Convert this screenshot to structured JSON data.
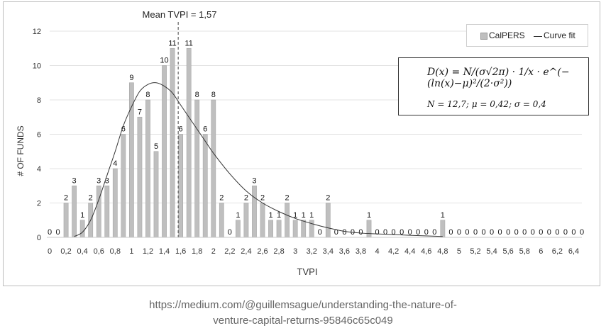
{
  "chart_data": {
    "type": "bar",
    "xlabel": "TVPI",
    "ylabel": "# OF FUNDS",
    "ylim": [
      0,
      12
    ],
    "yticks": [
      0,
      2,
      4,
      6,
      8,
      10,
      12
    ],
    "xlim": [
      0,
      6.5
    ],
    "xticks": [
      "0",
      "0,2",
      "0,4",
      "0,6",
      "0,8",
      "1",
      "1,2",
      "1,4",
      "1,6",
      "1,8",
      "2",
      "2,2",
      "2,4",
      "2,6",
      "2,8",
      "3",
      "3,2",
      "3,4",
      "3,6",
      "3,8",
      "4",
      "4,2",
      "4,4",
      "4,6",
      "4,8",
      "5",
      "5,2",
      "5,4",
      "5,6",
      "5,8",
      "6",
      "6,2",
      "6,4"
    ],
    "grid": true,
    "legend_position": "top-right",
    "series": [
      {
        "name": "CalPERS",
        "type": "bar",
        "color": "#bfbfbf",
        "x": [
          0,
          0.1,
          0.2,
          0.3,
          0.4,
          0.5,
          0.6,
          0.7,
          0.8,
          0.9,
          1.0,
          1.1,
          1.2,
          1.3,
          1.4,
          1.5,
          1.6,
          1.7,
          1.8,
          1.9,
          2.0,
          2.1,
          2.2,
          2.3,
          2.4,
          2.5,
          2.6,
          2.7,
          2.8,
          2.9,
          3.0,
          3.1,
          3.2,
          3.3,
          3.4,
          3.5,
          3.6,
          3.7,
          3.8,
          3.9,
          4.0,
          4.1,
          4.2,
          4.3,
          4.4,
          4.5,
          4.6,
          4.7,
          4.8,
          4.9,
          5.0,
          5.1,
          5.2,
          5.3,
          5.4,
          5.5,
          5.6,
          5.7,
          5.8,
          5.9,
          6.0,
          6.1,
          6.2,
          6.3,
          6.4,
          6.5
        ],
        "values": [
          0,
          0,
          2,
          3,
          1,
          2,
          3,
          3,
          4,
          6,
          9,
          7,
          8,
          5,
          10,
          11,
          6,
          11,
          8,
          6,
          8,
          2,
          0,
          1,
          2,
          3,
          2,
          1,
          1,
          2,
          1,
          1,
          1,
          0,
          2,
          0,
          0,
          0,
          0,
          1,
          0,
          0,
          0,
          0,
          0,
          0,
          0,
          0,
          1,
          0,
          0,
          0,
          0,
          0,
          0,
          0,
          0,
          0,
          0,
          0,
          0,
          0,
          0,
          0,
          0,
          0
        ]
      },
      {
        "name": "Curve fit",
        "type": "line",
        "color": "#333333",
        "x": [
          0.3,
          0.4,
          0.5,
          0.6,
          0.7,
          0.8,
          0.9,
          1.0,
          1.1,
          1.2,
          1.3,
          1.4,
          1.5,
          1.6,
          1.7,
          1.8,
          1.9,
          2.0,
          2.2,
          2.4,
          2.6,
          2.8,
          3.0,
          3.2,
          3.4,
          3.6,
          3.8,
          4.0,
          4.4,
          4.8
        ],
        "values": [
          0.05,
          0.3,
          1.0,
          2.2,
          3.6,
          5.0,
          6.5,
          7.6,
          8.5,
          8.9,
          9.0,
          8.8,
          8.4,
          7.7,
          7.0,
          6.3,
          5.6,
          4.9,
          3.7,
          2.7,
          2.0,
          1.5,
          1.1,
          0.8,
          0.55,
          0.35,
          0.25,
          0.2,
          0.12,
          0.05
        ]
      }
    ],
    "mean_line": {
      "x": 1.57,
      "label": "Mean TVPI = 1,57"
    },
    "formula": {
      "line1": "D(x) = N/(σ√2π) · 1/x · e^(−(ln(x)−μ)²/(2·σ²))",
      "line2": "N = 12,7; μ = 0,42; σ = 0,4"
    }
  },
  "source": {
    "line1": "https://medium.com/@guillemsague/understanding-the-nature-of-",
    "line2": "venture-capital-returns-95846c65c049"
  }
}
